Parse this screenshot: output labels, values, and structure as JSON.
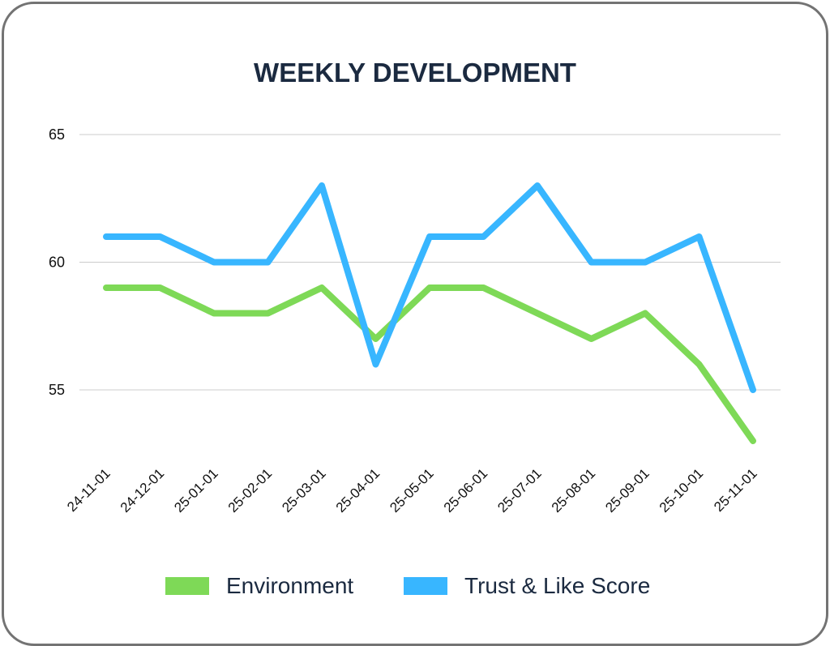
{
  "chart_data": {
    "type": "line",
    "title": "WEEKLY DEVELOPMENT",
    "xlabel": "",
    "ylabel": "",
    "categories": [
      "24-11-01",
      "24-12-01",
      "25-01-01",
      "25-02-01",
      "25-03-01",
      "25-04-01",
      "25-05-01",
      "25-06-01",
      "25-07-01",
      "25-08-01",
      "25-09-01",
      "25-10-01",
      "25-11-01"
    ],
    "series": [
      {
        "name": "Environment",
        "color": "#7ed957",
        "values": [
          59,
          59,
          58,
          58,
          59,
          57,
          59,
          59,
          58,
          57,
          58,
          56,
          53
        ]
      },
      {
        "name": "Trust & Like Score",
        "color": "#38b6ff",
        "values": [
          61,
          61,
          60,
          60,
          63,
          56,
          61,
          61,
          63,
          60,
          60,
          61,
          55
        ]
      }
    ],
    "yticks": [
      55,
      60,
      65
    ],
    "ylim": [
      52,
      65
    ],
    "grid": true,
    "legend": "bottom",
    "text_color": "#1b2a40"
  }
}
